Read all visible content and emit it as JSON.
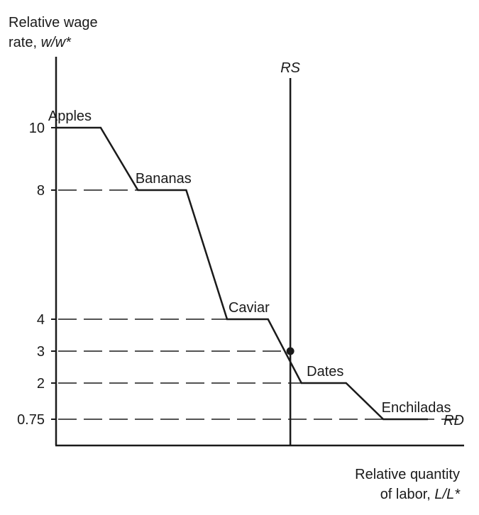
{
  "chart_data": {
    "type": "line",
    "ylabel_line1": "Relative wage",
    "ylabel_line2_prefix": "rate, ",
    "ylabel_line2_italic": "w/w*",
    "xlabel_line1": "Relative quantity",
    "xlabel_line2_prefix": "of labor, ",
    "xlabel_line2_italic": "L/L*",
    "yticks": [
      {
        "value": 10,
        "label": "10"
      },
      {
        "value": 8,
        "label": "8"
      },
      {
        "value": 4,
        "label": "4"
      },
      {
        "value": 3,
        "label": "3"
      },
      {
        "value": 2,
        "label": "2"
      },
      {
        "value": 0.75,
        "label": "0.75"
      }
    ],
    "goods": [
      {
        "name": "Apples",
        "wage": 10
      },
      {
        "name": "Bananas",
        "wage": 8
      },
      {
        "name": "Caviar",
        "wage": 4
      },
      {
        "name": "Dates",
        "wage": 2
      },
      {
        "name": "Enchiladas",
        "wage": 0.75
      }
    ],
    "dashed_levels": [
      8,
      4,
      3,
      2,
      0.75
    ],
    "rd_curve": {
      "name": "RD",
      "points": [
        [
          0,
          10
        ],
        [
          0.12,
          10
        ],
        [
          0.22,
          8
        ],
        [
          0.35,
          8
        ],
        [
          0.46,
          4
        ],
        [
          0.57,
          4
        ],
        [
          0.66,
          2
        ],
        [
          0.78,
          2
        ],
        [
          0.88,
          0.75
        ],
        [
          1.0,
          0.75
        ]
      ]
    },
    "rs_line": {
      "name": "RS",
      "x": 0.63
    },
    "equilibrium": {
      "x": 0.63,
      "wage": 3
    }
  }
}
